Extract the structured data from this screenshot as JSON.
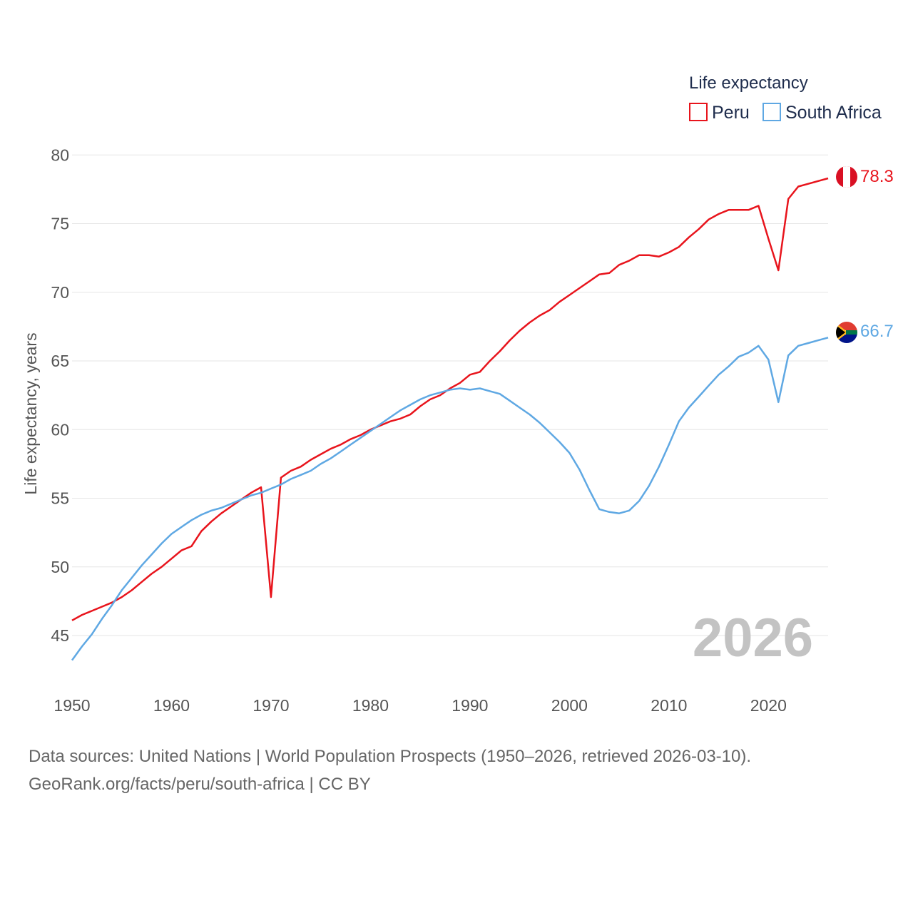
{
  "colors": {
    "peru": "#e8141c",
    "south_africa": "#5fa8e3",
    "grid": "#e6e6e6",
    "axis_text": "#555555"
  },
  "chart_data": {
    "type": "line",
    "title": "",
    "legend_title": "Life expectancy",
    "legend_position": "top-right",
    "ylabel": "Life expectancy, years",
    "xlabel": "",
    "xlim": [
      1950,
      2026
    ],
    "ylim": [
      41,
      81
    ],
    "x_ticks": [
      "1950",
      "1960",
      "1970",
      "1980",
      "1990",
      "2000",
      "2010",
      "2020"
    ],
    "y_ticks": [
      "45",
      "50",
      "55",
      "60",
      "65",
      "70",
      "75",
      "80"
    ],
    "grid": true,
    "watermark_year": "2026",
    "x": [
      1950,
      1951,
      1952,
      1953,
      1954,
      1955,
      1956,
      1957,
      1958,
      1959,
      1960,
      1961,
      1962,
      1963,
      1964,
      1965,
      1966,
      1967,
      1968,
      1969,
      1970,
      1971,
      1972,
      1973,
      1974,
      1975,
      1976,
      1977,
      1978,
      1979,
      1980,
      1981,
      1982,
      1983,
      1984,
      1985,
      1986,
      1987,
      1988,
      1989,
      1990,
      1991,
      1992,
      1993,
      1994,
      1995,
      1996,
      1997,
      1998,
      1999,
      2000,
      2001,
      2002,
      2003,
      2004,
      2005,
      2006,
      2007,
      2008,
      2009,
      2010,
      2011,
      2012,
      2013,
      2014,
      2015,
      2016,
      2017,
      2018,
      2019,
      2020,
      2021,
      2022,
      2023,
      2024,
      2025,
      2026
    ],
    "series": [
      {
        "name": "Peru",
        "color": "#e8141c",
        "end_label": "78.3",
        "values": [
          46.1,
          46.5,
          46.8,
          47.1,
          47.4,
          47.8,
          48.3,
          48.9,
          49.5,
          50.0,
          50.6,
          51.2,
          51.5,
          52.6,
          53.3,
          53.9,
          54.4,
          54.9,
          55.4,
          55.8,
          47.8,
          56.5,
          57.0,
          57.3,
          57.8,
          58.2,
          58.6,
          58.9,
          59.3,
          59.6,
          60.0,
          60.3,
          60.6,
          60.8,
          61.1,
          61.7,
          62.2,
          62.5,
          63.0,
          63.4,
          64.0,
          64.2,
          65.0,
          65.7,
          66.5,
          67.2,
          67.8,
          68.3,
          68.7,
          69.3,
          69.8,
          70.3,
          70.8,
          71.3,
          71.4,
          72.0,
          72.3,
          72.7,
          72.7,
          72.6,
          72.9,
          73.3,
          74.0,
          74.6,
          75.3,
          75.7,
          76.0,
          76.0,
          76.0,
          76.3,
          73.9,
          71.6,
          76.8,
          77.7,
          77.9,
          78.1,
          78.3
        ]
      },
      {
        "name": "South Africa",
        "color": "#5fa8e3",
        "end_label": "66.7",
        "values": [
          43.2,
          44.2,
          45.1,
          46.2,
          47.2,
          48.3,
          49.2,
          50.1,
          50.9,
          51.7,
          52.4,
          52.9,
          53.4,
          53.8,
          54.1,
          54.3,
          54.6,
          54.9,
          55.2,
          55.4,
          55.7,
          56.0,
          56.4,
          56.7,
          57.0,
          57.5,
          57.9,
          58.4,
          58.9,
          59.4,
          59.9,
          60.4,
          60.9,
          61.4,
          61.8,
          62.2,
          62.5,
          62.7,
          62.9,
          63.0,
          62.9,
          63.0,
          62.8,
          62.6,
          62.1,
          61.6,
          61.1,
          60.5,
          59.8,
          59.1,
          58.3,
          57.1,
          55.6,
          54.2,
          54.0,
          53.9,
          54.1,
          54.8,
          55.9,
          57.3,
          58.9,
          60.6,
          61.6,
          62.4,
          63.2,
          64.0,
          64.6,
          65.3,
          65.6,
          66.1,
          65.1,
          62.0,
          65.4,
          66.1,
          66.3,
          66.5,
          66.7
        ]
      }
    ]
  },
  "source": {
    "line1": "Data sources: United Nations | World Population Prospects (1950–2026, retrieved 2026-03-10).",
    "line2": "GeoRank.org/facts/peru/south-africa | CC BY"
  }
}
